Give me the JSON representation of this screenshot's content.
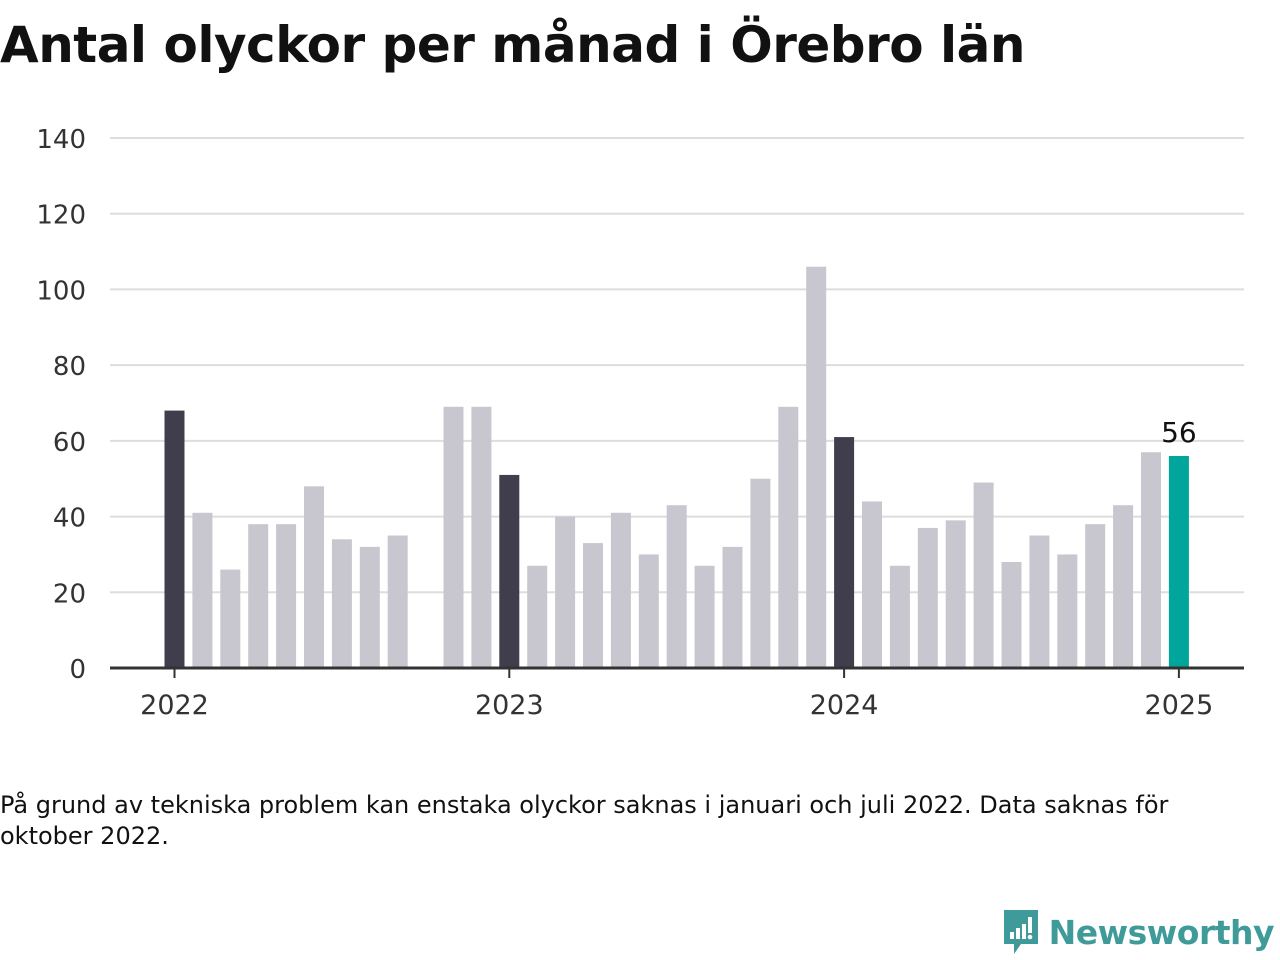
{
  "title": "Antal olyckor per månad i Örebro län",
  "footnote": "På grund av tekniska problem kan enstaka olyckor saknas i januari och juli 2022. Data saknas för oktober 2022.",
  "brand": {
    "name": "Newsworthy",
    "icon": "newsworthy-logo-icon"
  },
  "colors": {
    "default_bar": "#c8c7cf",
    "january_bar": "#403e4d",
    "latest_bar": "#00a69b",
    "grid": "#dddddd",
    "axis": "#333333",
    "brand": "#3f9a9a"
  },
  "chart_data": {
    "type": "bar",
    "title": "Antal olyckor per månad i Örebro län",
    "xlabel": "",
    "ylabel": "",
    "ylim": [
      0,
      140
    ],
    "yticks": [
      0,
      20,
      40,
      60,
      80,
      100,
      120,
      140
    ],
    "xtick_labels": [
      {
        "month": "2022-01",
        "label": "2022"
      },
      {
        "month": "2023-01",
        "label": "2023"
      },
      {
        "month": "2024-01",
        "label": "2024"
      },
      {
        "month": "2025-01",
        "label": "2025"
      }
    ],
    "grid": true,
    "legend": "none",
    "highlight_label": {
      "month": "2025-01",
      "text": "56"
    },
    "months": [
      "2022-01",
      "2022-02",
      "2022-03",
      "2022-04",
      "2022-05",
      "2022-06",
      "2022-07",
      "2022-08",
      "2022-09",
      "2022-10",
      "2022-11",
      "2022-12",
      "2023-01",
      "2023-02",
      "2023-03",
      "2023-04",
      "2023-05",
      "2023-06",
      "2023-07",
      "2023-08",
      "2023-09",
      "2023-10",
      "2023-11",
      "2023-12",
      "2024-01",
      "2024-02",
      "2024-03",
      "2024-04",
      "2024-05",
      "2024-06",
      "2024-07",
      "2024-08",
      "2024-09",
      "2024-10",
      "2024-11",
      "2024-12",
      "2025-01"
    ],
    "values": [
      68,
      41,
      26,
      38,
      38,
      48,
      34,
      32,
      35,
      null,
      69,
      69,
      51,
      27,
      40,
      33,
      41,
      30,
      43,
      27,
      32,
      50,
      69,
      106,
      61,
      44,
      27,
      37,
      39,
      49,
      28,
      35,
      30,
      38,
      43,
      57,
      56
    ]
  }
}
